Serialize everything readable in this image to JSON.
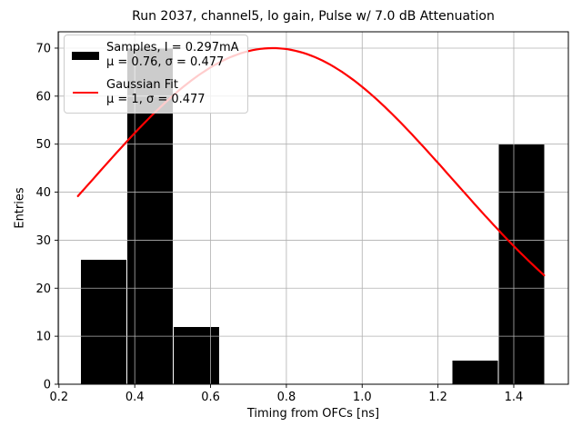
{
  "chart_data": {
    "type": "bar",
    "title": "Run 2037, channel5, lo gain, Pulse w/ 7.0 dB Attenuation",
    "xlabel": "Timing from OFCs [ns]",
    "ylabel": "Entries",
    "xlim": [
      0.198,
      1.544
    ],
    "ylim": [
      0,
      73.4
    ],
    "xtick_labels": [
      "0.2",
      "0.4",
      "0.6",
      "0.8",
      "1.0",
      "1.2",
      "1.4"
    ],
    "ytick_labels": [
      "0",
      "10",
      "20",
      "30",
      "40",
      "50",
      "60",
      "70"
    ],
    "grid": true,
    "grid_color": "#b0b0b0",
    "legend_position": "upper left",
    "series": [
      {
        "name": "Samples",
        "type": "histogram",
        "color": "#000000",
        "edge_color": "#ffffff",
        "bin_edges": [
          0.257,
          0.379,
          0.502,
          0.624,
          0.747,
          0.869,
          0.992,
          1.114,
          1.237,
          1.359,
          1.482
        ],
        "counts": [
          26,
          70,
          12,
          0,
          0,
          0,
          0,
          0,
          5,
          50
        ]
      },
      {
        "name": "Gaussian Fit",
        "type": "line",
        "color": "#ff0000",
        "amplitude": 70,
        "mu": 0.764,
        "sigma": 0.477,
        "x_start": 0.25,
        "x_end": 1.48
      }
    ],
    "legend": {
      "entries": [
        {
          "swatch": "black-rect",
          "label": "Samples, I = 0.297mA",
          "stats": "μ = 0.76, σ = 0.477"
        },
        {
          "swatch": "red-line",
          "label": "Gaussian Fit",
          "stats": "μ = 1, σ = 0.477"
        }
      ]
    }
  }
}
